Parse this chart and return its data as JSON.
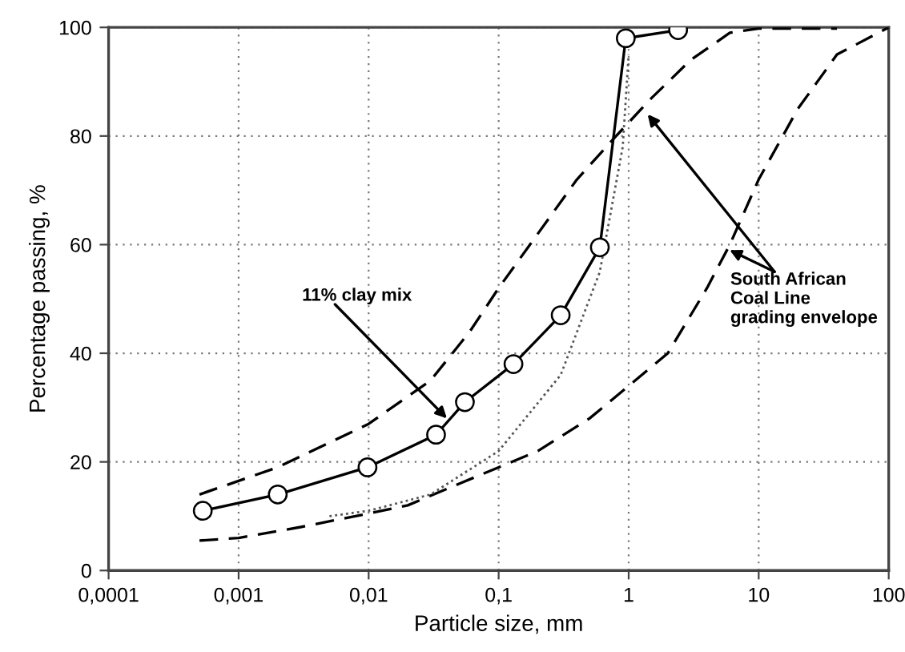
{
  "chart_data": {
    "type": "line",
    "xlabel": "Particle size, mm",
    "ylabel": "Percentage passing, %",
    "log": "x",
    "xlim": [
      0.0001,
      100
    ],
    "ylim": [
      0,
      100
    ],
    "xticks": [
      {
        "value": 0.0001,
        "label": "0,0001"
      },
      {
        "value": 0.001,
        "label": "0,001"
      },
      {
        "value": 0.01,
        "label": "0,01"
      },
      {
        "value": 0.1,
        "label": "0,1"
      },
      1,
      10,
      100
    ],
    "yticks": [
      0,
      20,
      40,
      60,
      80,
      100
    ],
    "grid": true,
    "legend": false,
    "series": [
      {
        "color": "#000000",
        "marker": "circle",
        "line_style": "solid",
        "x": [
          0.00053,
          0.002,
          0.0098,
          0.033,
          0.055,
          0.13,
          0.3,
          0.6,
          0.95,
          2.4
        ],
        "values": [
          11,
          14,
          19,
          25,
          31,
          38,
          47,
          59.5,
          98,
          99.5
        ]
      },
      {
        "color": "#000000",
        "marker": "none",
        "line_style": "dashed",
        "x": [
          0.0005,
          0.002,
          0.01,
          0.03,
          0.06,
          0.1,
          0.2,
          0.4,
          0.8,
          1.5,
          3,
          6,
          10,
          40
        ],
        "values": [
          14,
          19,
          27,
          35,
          44,
          52,
          62,
          72,
          80,
          87,
          94,
          99,
          99.8,
          99.8
        ]
      },
      {
        "color": "#000000",
        "marker": "none",
        "line_style": "dashed",
        "x": [
          0.0005,
          0.001,
          0.003,
          0.01,
          0.02,
          0.05,
          0.1,
          0.2,
          0.5,
          1,
          2,
          4,
          6,
          10,
          20,
          40,
          100
        ],
        "values": [
          5.5,
          6,
          8,
          10.5,
          12,
          16,
          19,
          22,
          28,
          34,
          40,
          52,
          60,
          72,
          85,
          95,
          100
        ]
      },
      {
        "color": "#555555",
        "marker": "none",
        "line_style": "dotted",
        "x": [
          0.005,
          0.01,
          0.03,
          0.1,
          0.3,
          0.6,
          0.9,
          1.0
        ],
        "values": [
          10,
          11,
          14,
          22,
          36,
          55,
          78,
          95
        ]
      }
    ],
    "annotations": [
      {
        "text": "11% clay mix",
        "x": 0.04,
        "y": 28
      },
      {
        "text": "South African\nCoal Line\ngrading envelope",
        "x": 1.4,
        "y": 84
      }
    ]
  }
}
